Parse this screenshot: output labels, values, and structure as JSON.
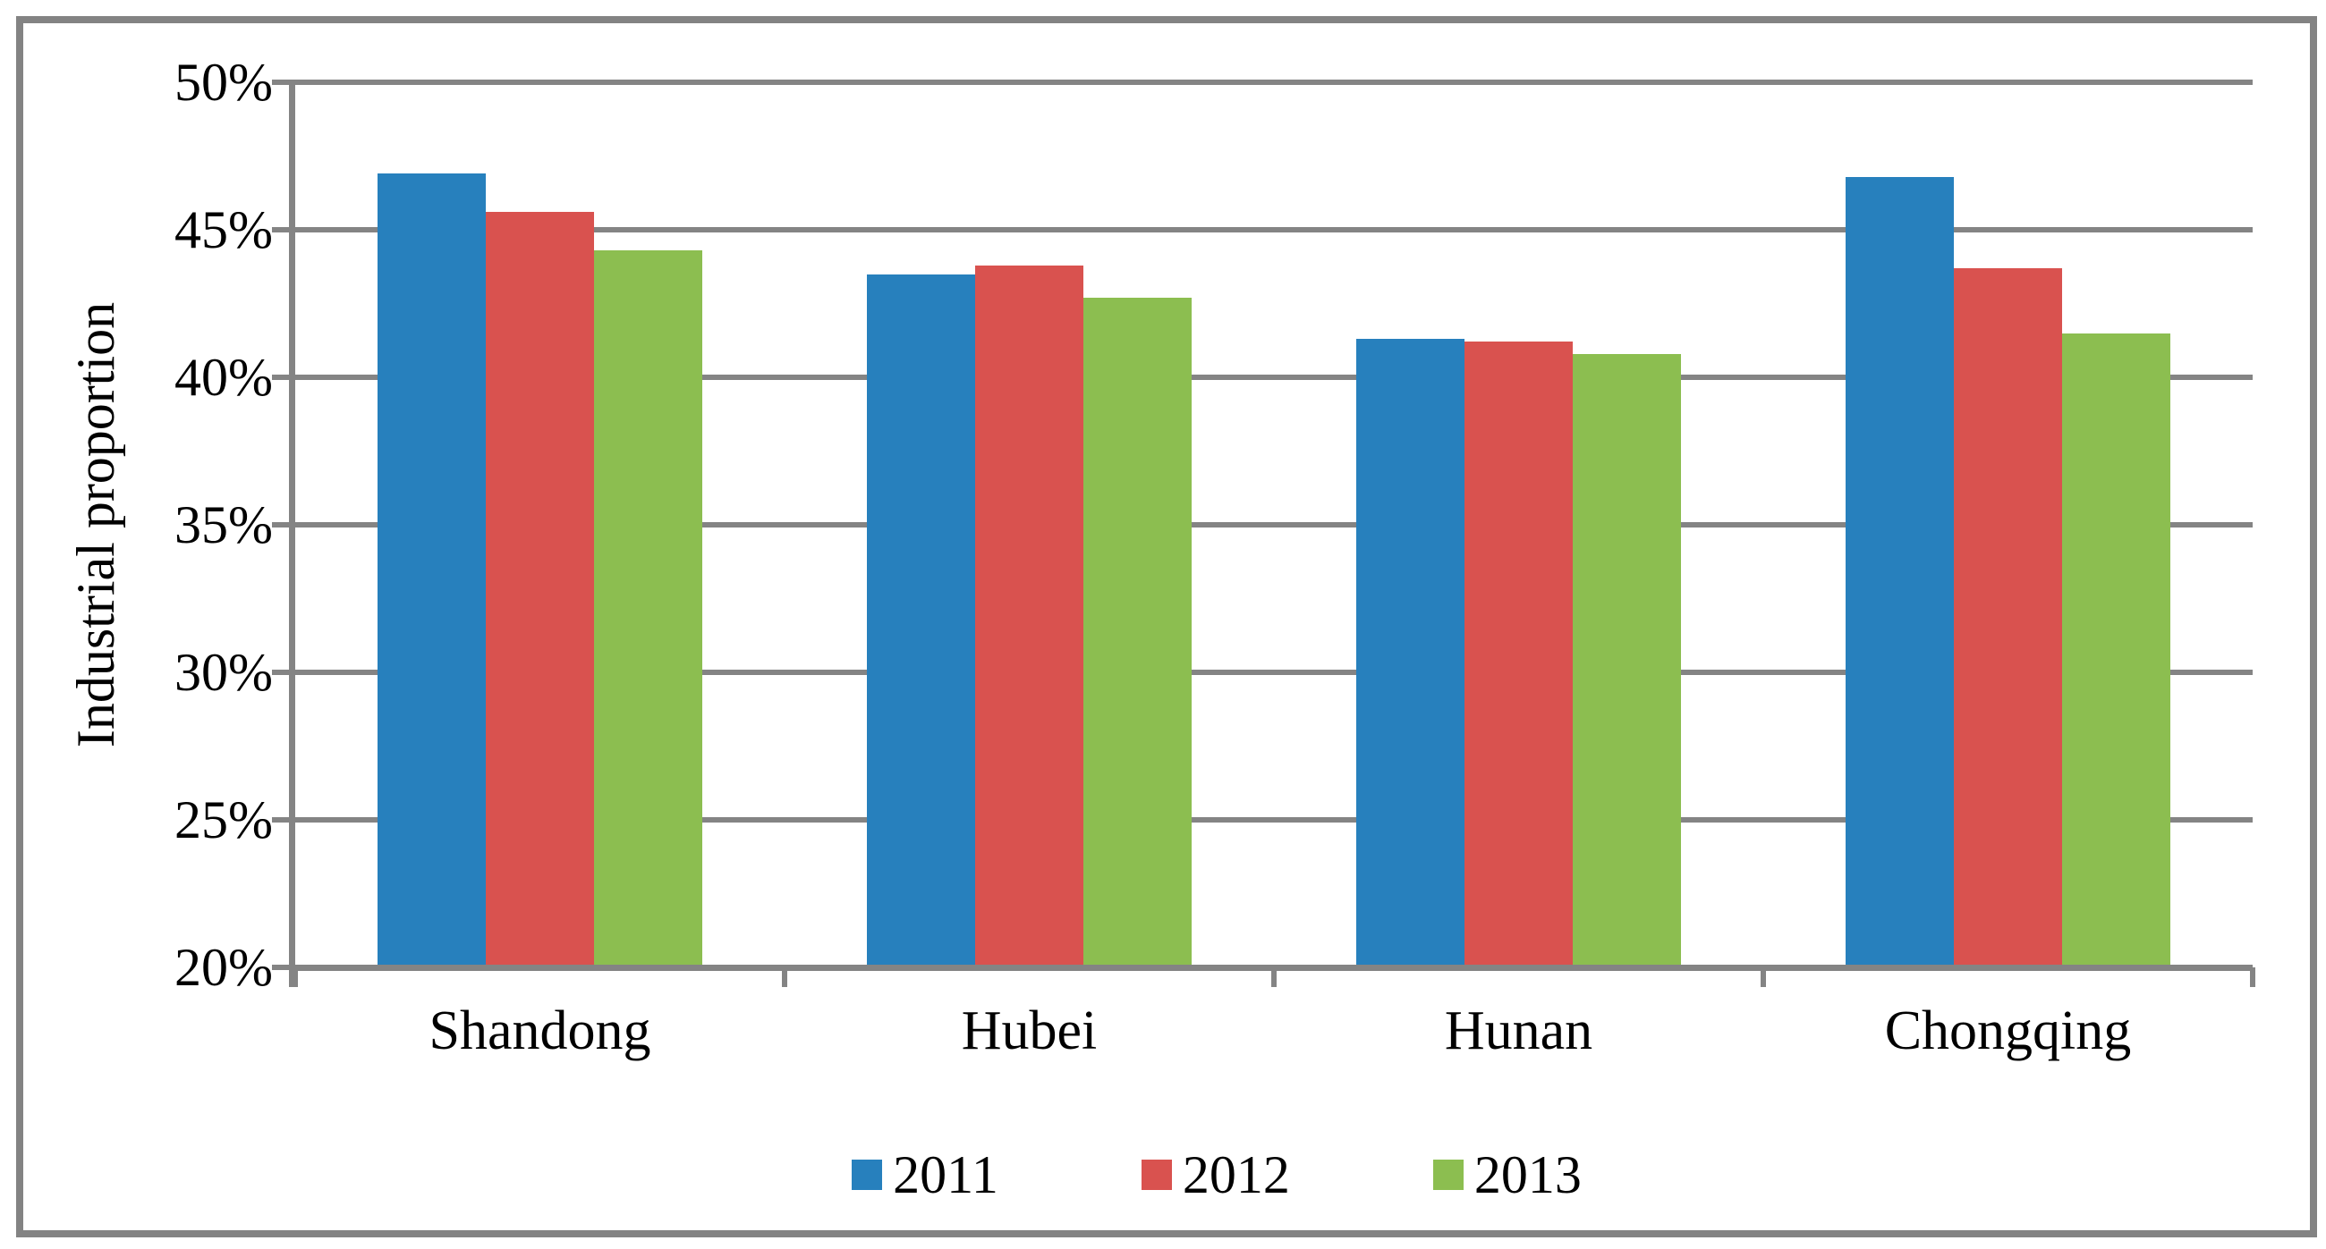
{
  "figure": {
    "background": "#FFFFFF",
    "border_color": "#838383"
  },
  "chart_data": {
    "type": "bar",
    "title": "",
    "ylabel": "Industrial proportion",
    "xlabel": "",
    "categories": [
      "Shandong",
      "Hubei",
      "Hunan",
      "Chongqing"
    ],
    "series": [
      {
        "name": "2011",
        "color": "#2780BD",
        "values": [
          46.9,
          43.5,
          41.3,
          46.8
        ]
      },
      {
        "name": "2012",
        "color": "#D9524F",
        "values": [
          45.6,
          43.8,
          41.2,
          43.7
        ]
      },
      {
        "name": "2013",
        "color": "#8CBE50",
        "values": [
          44.3,
          42.7,
          40.8,
          41.5
        ]
      }
    ],
    "ylim": [
      20,
      50
    ],
    "ytick_step": 5,
    "ytick_labels": [
      "20%",
      "25%",
      "30%",
      "35%",
      "40%",
      "45%",
      "50%"
    ],
    "grid": true,
    "legend_position": "bottom",
    "axis_color": "#848484"
  }
}
